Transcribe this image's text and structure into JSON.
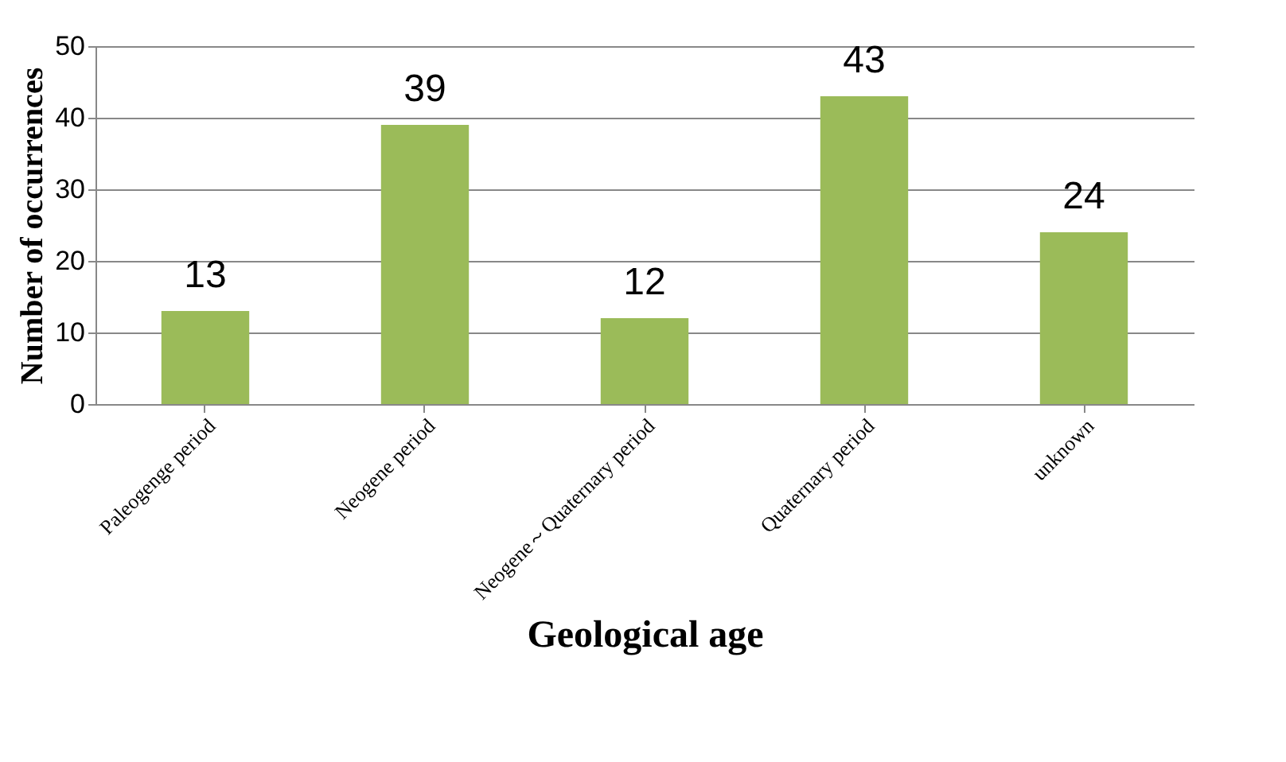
{
  "chart_data": {
    "type": "bar",
    "xlabel": "Geological age",
    "ylabel": "Number of occurrences",
    "categories": [
      "Paleogenge period",
      "Neogene period",
      "Neogene～Quaternary period",
      "Quaternary period",
      "unknown"
    ],
    "values": [
      13,
      39,
      12,
      43,
      24
    ],
    "color": "#9bbb59",
    "ylim": [
      0,
      50
    ],
    "yticks": [
      0,
      10,
      20,
      30,
      40,
      50
    ],
    "grid": "y",
    "data_labels": true
  }
}
